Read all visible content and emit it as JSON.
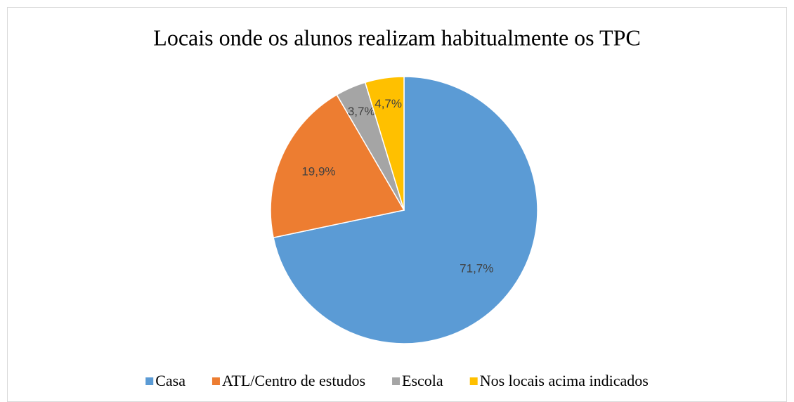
{
  "chart_data": {
    "type": "pie",
    "title": "Locais onde os alunos realizam habitualmente os TPC",
    "categories": [
      "Casa",
      "ATL/Centro de estudos",
      "Escola",
      "Nos locais acima indicados"
    ],
    "values": [
      71.7,
      19.9,
      3.7,
      4.7
    ],
    "value_labels": [
      "71,7%",
      "19,9%",
      "3,7%",
      "4,7%"
    ],
    "colors": [
      "#5b9bd5",
      "#ed7d31",
      "#a5a5a5",
      "#ffc000"
    ],
    "legend": "bottom"
  }
}
